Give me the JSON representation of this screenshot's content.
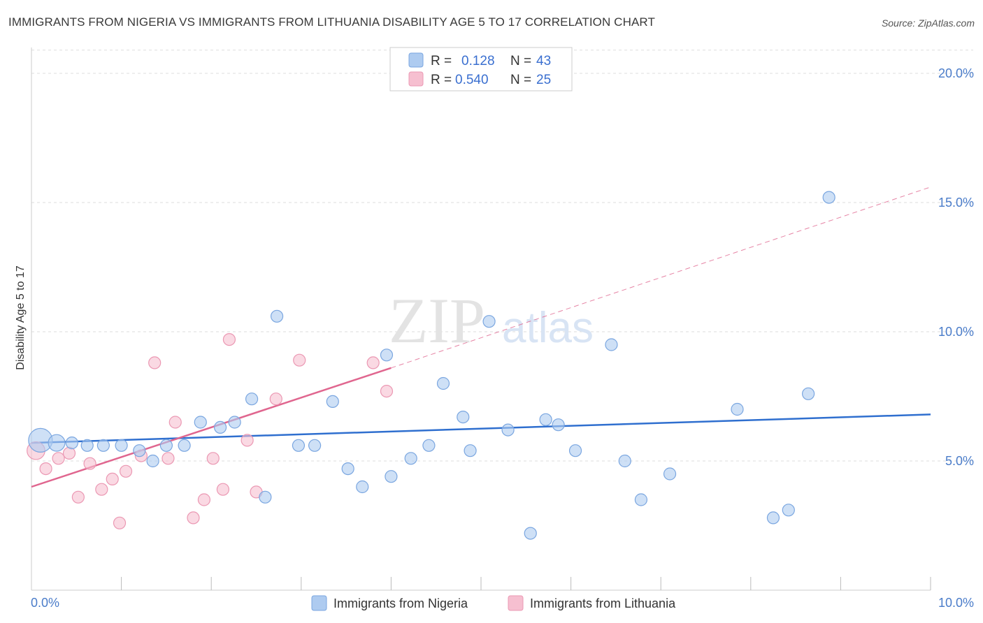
{
  "title": "IMMIGRANTS FROM NIGERIA VS IMMIGRANTS FROM LITHUANIA DISABILITY AGE 5 TO 17 CORRELATION CHART",
  "source": "Source: ZipAtlas.com",
  "watermark": {
    "zip": "ZIP",
    "atlas": "atlas"
  },
  "colors": {
    "nigeria_fill": "#aecbf0",
    "nigeria_stroke": "#7aa6e0",
    "nigeria_line": "#2f6fcf",
    "lithuania_fill": "#f6bfd0",
    "lithuania_stroke": "#eb98b3",
    "lithuania_line": "#e0668f",
    "grid": "#dddddd",
    "tick_label": "#4a7cc9"
  },
  "legend": {
    "r_label": "R =",
    "n_label": "N =",
    "rows": [
      {
        "r": "0.128",
        "n": "43"
      },
      {
        "r": "0.540",
        "n": "25"
      }
    ]
  },
  "chart_data": {
    "type": "scatter",
    "title": "IMMIGRANTS FROM NIGERIA VS IMMIGRANTS FROM LITHUANIA DISABILITY AGE 5 TO 17 CORRELATION CHART",
    "xlabel": "",
    "ylabel": "Disability Age 5 to 17",
    "xlim": [
      0,
      10
    ],
    "ylim": [
      0,
      21
    ],
    "x_tick_labels": [
      "0.0%",
      "10.0%"
    ],
    "y_ticks": [
      5,
      10,
      15,
      20
    ],
    "y_tick_labels": [
      "5.0%",
      "10.0%",
      "15.0%",
      "20.0%"
    ],
    "grid": true,
    "legend_position": "top-center",
    "series": [
      {
        "name": "Immigrants from Nigeria",
        "r": 0.128,
        "n": 43,
        "trend": {
          "x": [
            0,
            10
          ],
          "y": [
            5.7,
            6.8
          ],
          "dashed_extension": false
        },
        "points": [
          {
            "x": 0.1,
            "y": 5.8,
            "s": 2
          },
          {
            "x": 0.28,
            "y": 5.7,
            "s": 1.4
          },
          {
            "x": 0.45,
            "y": 5.7,
            "s": 1
          },
          {
            "x": 0.62,
            "y": 5.6,
            "s": 1
          },
          {
            "x": 0.8,
            "y": 5.6,
            "s": 1
          },
          {
            "x": 1.0,
            "y": 5.6,
            "s": 1
          },
          {
            "x": 1.2,
            "y": 5.4,
            "s": 1
          },
          {
            "x": 1.35,
            "y": 5.0,
            "s": 1
          },
          {
            "x": 1.5,
            "y": 5.6,
            "s": 1
          },
          {
            "x": 1.7,
            "y": 5.6,
            "s": 1
          },
          {
            "x": 1.88,
            "y": 6.5,
            "s": 1
          },
          {
            "x": 2.1,
            "y": 6.3,
            "s": 1
          },
          {
            "x": 2.26,
            "y": 6.5,
            "s": 1
          },
          {
            "x": 2.45,
            "y": 7.4,
            "s": 1
          },
          {
            "x": 2.6,
            "y": 3.6,
            "s": 1
          },
          {
            "x": 2.73,
            "y": 10.6,
            "s": 1
          },
          {
            "x": 2.97,
            "y": 5.6,
            "s": 1
          },
          {
            "x": 3.15,
            "y": 5.6,
            "s": 1
          },
          {
            "x": 3.35,
            "y": 7.3,
            "s": 1
          },
          {
            "x": 3.52,
            "y": 4.7,
            "s": 1
          },
          {
            "x": 3.68,
            "y": 4.0,
            "s": 1
          },
          {
            "x": 3.95,
            "y": 9.1,
            "s": 1
          },
          {
            "x": 4.0,
            "y": 4.4,
            "s": 1
          },
          {
            "x": 4.22,
            "y": 5.1,
            "s": 1
          },
          {
            "x": 4.42,
            "y": 5.6,
            "s": 1
          },
          {
            "x": 4.58,
            "y": 8.0,
            "s": 1
          },
          {
            "x": 4.8,
            "y": 6.7,
            "s": 1
          },
          {
            "x": 4.88,
            "y": 5.4,
            "s": 1
          },
          {
            "x": 5.09,
            "y": 10.4,
            "s": 1
          },
          {
            "x": 5.3,
            "y": 6.2,
            "s": 1
          },
          {
            "x": 5.55,
            "y": 2.2,
            "s": 1
          },
          {
            "x": 5.72,
            "y": 6.6,
            "s": 1
          },
          {
            "x": 5.86,
            "y": 6.4,
            "s": 1
          },
          {
            "x": 6.05,
            "y": 5.4,
            "s": 1
          },
          {
            "x": 6.45,
            "y": 9.5,
            "s": 1
          },
          {
            "x": 6.6,
            "y": 5.0,
            "s": 1
          },
          {
            "x": 6.78,
            "y": 3.5,
            "s": 1
          },
          {
            "x": 7.1,
            "y": 4.5,
            "s": 1
          },
          {
            "x": 7.85,
            "y": 7.0,
            "s": 1
          },
          {
            "x": 8.25,
            "y": 2.8,
            "s": 1
          },
          {
            "x": 8.42,
            "y": 3.1,
            "s": 1
          },
          {
            "x": 8.64,
            "y": 7.6,
            "s": 1
          },
          {
            "x": 8.87,
            "y": 15.2,
            "s": 1
          }
        ]
      },
      {
        "name": "Immigrants from Lithuania",
        "r": 0.54,
        "n": 25,
        "trend": {
          "x": [
            0,
            4.0
          ],
          "y": [
            4.0,
            8.6
          ],
          "dashed_to": [
            10,
            15.6
          ]
        },
        "points": [
          {
            "x": 0.05,
            "y": 5.4,
            "s": 1.5
          },
          {
            "x": 0.16,
            "y": 4.7,
            "s": 1
          },
          {
            "x": 0.3,
            "y": 5.1,
            "s": 1
          },
          {
            "x": 0.42,
            "y": 5.3,
            "s": 1
          },
          {
            "x": 0.52,
            "y": 3.6,
            "s": 1
          },
          {
            "x": 0.65,
            "y": 4.9,
            "s": 1
          },
          {
            "x": 0.78,
            "y": 3.9,
            "s": 1
          },
          {
            "x": 0.9,
            "y": 4.3,
            "s": 1
          },
          {
            "x": 0.98,
            "y": 2.6,
            "s": 1
          },
          {
            "x": 1.05,
            "y": 4.6,
            "s": 1
          },
          {
            "x": 1.22,
            "y": 5.2,
            "s": 1
          },
          {
            "x": 1.37,
            "y": 8.8,
            "s": 1
          },
          {
            "x": 1.52,
            "y": 5.1,
            "s": 1
          },
          {
            "x": 1.6,
            "y": 6.5,
            "s": 1
          },
          {
            "x": 1.8,
            "y": 2.8,
            "s": 1
          },
          {
            "x": 1.92,
            "y": 3.5,
            "s": 1
          },
          {
            "x": 2.02,
            "y": 5.1,
            "s": 1
          },
          {
            "x": 2.13,
            "y": 3.9,
            "s": 1
          },
          {
            "x": 2.2,
            "y": 9.7,
            "s": 1
          },
          {
            "x": 2.4,
            "y": 5.8,
            "s": 1
          },
          {
            "x": 2.5,
            "y": 3.8,
            "s": 1
          },
          {
            "x": 2.72,
            "y": 7.4,
            "s": 1
          },
          {
            "x": 2.98,
            "y": 8.9,
            "s": 1
          },
          {
            "x": 3.8,
            "y": 8.8,
            "s": 1
          },
          {
            "x": 3.95,
            "y": 7.7,
            "s": 1
          }
        ]
      }
    ]
  }
}
